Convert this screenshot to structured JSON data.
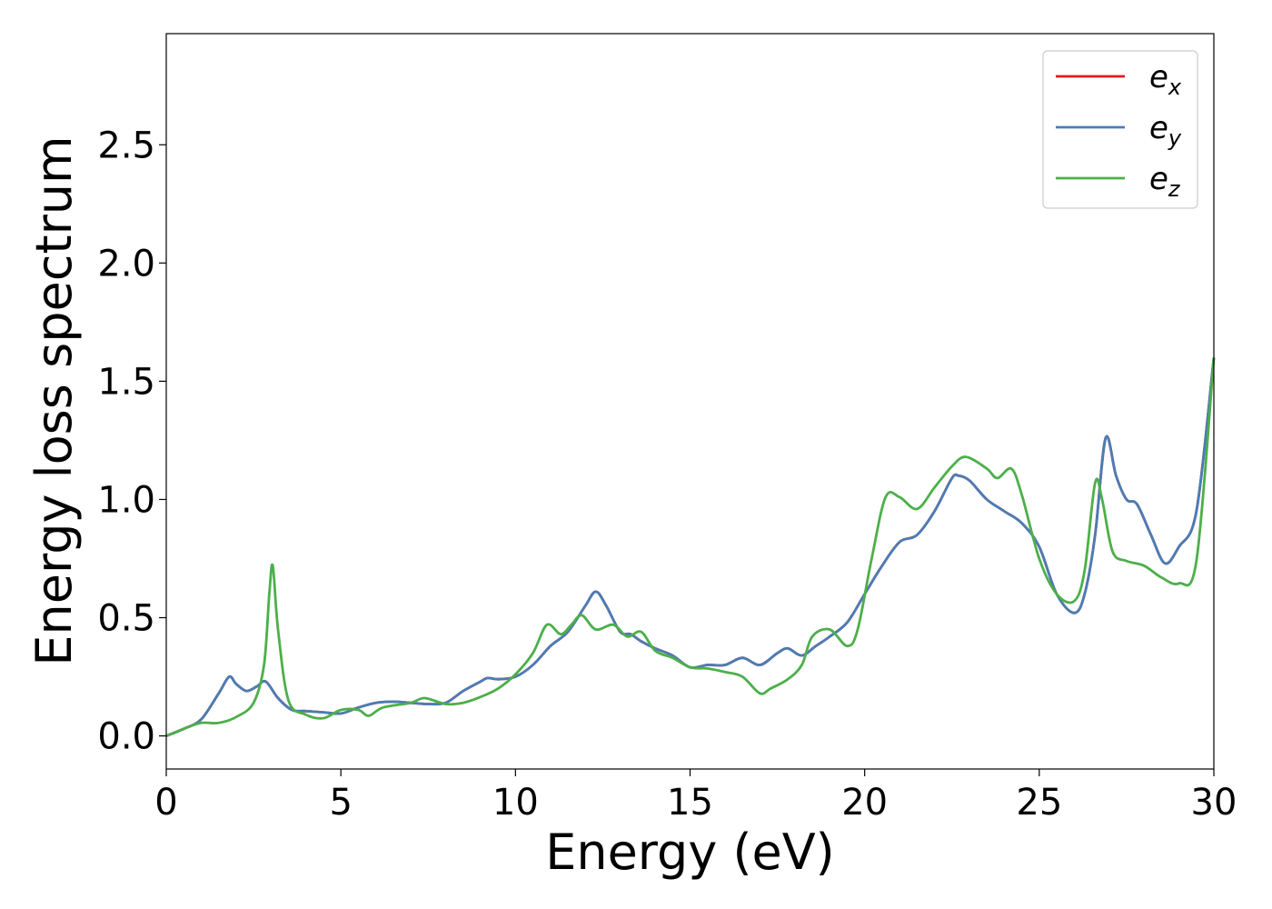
{
  "chart_data": {
    "type": "line",
    "xlabel": "Energy (eV)",
    "ylabel": "Energy loss spectrum",
    "xlim": [
      0,
      30
    ],
    "ylim": [
      -0.14,
      2.97
    ],
    "xticks": [
      0,
      5,
      10,
      15,
      20,
      25,
      30
    ],
    "yticks": [
      0.0,
      0.5,
      1.0,
      1.5,
      2.0,
      2.5
    ],
    "xtick_labels": [
      "0",
      "5",
      "10",
      "15",
      "20",
      "25",
      "30"
    ],
    "ytick_labels": [
      "0.0",
      "0.5",
      "1.0",
      "1.5",
      "2.0",
      "2.5"
    ],
    "grid": false,
    "legend_position": "top-right",
    "series": [
      {
        "name": "e_x",
        "label_base": "e",
        "label_sub": "x",
        "color": "#e41a1c",
        "x": [
          0,
          0.5,
          1.0,
          1.5,
          1.8,
          2.0,
          2.3,
          2.6,
          2.85,
          3.2,
          3.6,
          4.0,
          4.5,
          5.0,
          5.5,
          6.0,
          6.5,
          7.0,
          7.5,
          8.0,
          8.5,
          9.0,
          9.2,
          9.5,
          10.0,
          10.5,
          11.0,
          11.5,
          12.0,
          12.3,
          12.6,
          13.0,
          13.3,
          13.6,
          14.0,
          14.5,
          15.0,
          15.5,
          16.0,
          16.5,
          17.0,
          17.5,
          17.8,
          18.2,
          18.6,
          19.0,
          19.5,
          20.0,
          20.5,
          21.0,
          21.5,
          22.0,
          22.5,
          22.7,
          23.0,
          23.5,
          24.0,
          24.5,
          25.0,
          25.5,
          26.0,
          26.3,
          26.6,
          26.9,
          27.2,
          27.5,
          27.8,
          28.2,
          28.6,
          29.0,
          29.5,
          30.0
        ],
        "y": [
          0,
          0.03,
          0.07,
          0.18,
          0.25,
          0.22,
          0.19,
          0.21,
          0.23,
          0.16,
          0.11,
          0.105,
          0.1,
          0.095,
          0.12,
          0.14,
          0.145,
          0.14,
          0.135,
          0.14,
          0.19,
          0.23,
          0.245,
          0.24,
          0.25,
          0.3,
          0.38,
          0.44,
          0.55,
          0.61,
          0.55,
          0.44,
          0.43,
          0.4,
          0.37,
          0.34,
          0.29,
          0.3,
          0.3,
          0.33,
          0.3,
          0.35,
          0.37,
          0.34,
          0.38,
          0.42,
          0.48,
          0.6,
          0.72,
          0.82,
          0.85,
          0.95,
          1.09,
          1.1,
          1.08,
          1.0,
          0.95,
          0.9,
          0.8,
          0.6,
          0.52,
          0.6,
          0.85,
          1.26,
          1.1,
          1.0,
          0.98,
          0.85,
          0.73,
          0.8,
          0.95,
          1.6
        ]
      },
      {
        "name": "e_y",
        "label_base": "e",
        "label_sub": "y",
        "color": "#4a7db5",
        "x": [
          0,
          0.5,
          1.0,
          1.5,
          1.8,
          2.0,
          2.3,
          2.6,
          2.85,
          3.2,
          3.6,
          4.0,
          4.5,
          5.0,
          5.5,
          6.0,
          6.5,
          7.0,
          7.5,
          8.0,
          8.5,
          9.0,
          9.2,
          9.5,
          10.0,
          10.5,
          11.0,
          11.5,
          12.0,
          12.3,
          12.6,
          13.0,
          13.3,
          13.6,
          14.0,
          14.5,
          15.0,
          15.5,
          16.0,
          16.5,
          17.0,
          17.5,
          17.8,
          18.2,
          18.6,
          19.0,
          19.5,
          20.0,
          20.5,
          21.0,
          21.5,
          22.0,
          22.5,
          22.7,
          23.0,
          23.5,
          24.0,
          24.5,
          25.0,
          25.5,
          26.0,
          26.3,
          26.6,
          26.9,
          27.2,
          27.5,
          27.8,
          28.2,
          28.6,
          29.0,
          29.5,
          30.0
        ],
        "y": [
          0,
          0.03,
          0.07,
          0.18,
          0.25,
          0.22,
          0.19,
          0.21,
          0.23,
          0.16,
          0.11,
          0.105,
          0.1,
          0.095,
          0.12,
          0.14,
          0.145,
          0.14,
          0.135,
          0.14,
          0.19,
          0.23,
          0.245,
          0.24,
          0.25,
          0.3,
          0.38,
          0.44,
          0.55,
          0.61,
          0.55,
          0.44,
          0.43,
          0.4,
          0.37,
          0.34,
          0.29,
          0.3,
          0.3,
          0.33,
          0.3,
          0.35,
          0.37,
          0.34,
          0.38,
          0.42,
          0.48,
          0.6,
          0.72,
          0.82,
          0.85,
          0.95,
          1.09,
          1.1,
          1.08,
          1.0,
          0.95,
          0.9,
          0.8,
          0.6,
          0.52,
          0.6,
          0.85,
          1.26,
          1.1,
          1.0,
          0.98,
          0.85,
          0.73,
          0.8,
          0.95,
          1.6
        ]
      },
      {
        "name": "e_z",
        "label_base": "e",
        "label_sub": "z",
        "color": "#4daf4a",
        "x": [
          0,
          0.5,
          1.0,
          1.5,
          2.0,
          2.5,
          2.8,
          2.95,
          3.05,
          3.2,
          3.5,
          4.0,
          4.5,
          5.0,
          5.5,
          5.8,
          6.2,
          7.0,
          7.4,
          8.0,
          8.5,
          9.0,
          9.5,
          10.0,
          10.5,
          10.9,
          11.3,
          11.6,
          11.9,
          12.3,
          12.8,
          13.2,
          13.6,
          14.0,
          14.5,
          15.0,
          15.5,
          16.0,
          16.5,
          17.0,
          17.3,
          17.8,
          18.2,
          18.5,
          19.0,
          19.5,
          19.8,
          20.2,
          20.6,
          21.0,
          21.5,
          22.0,
          22.5,
          22.9,
          23.5,
          23.8,
          24.2,
          24.5,
          25.0,
          25.5,
          26.0,
          26.3,
          26.6,
          26.8,
          27.1,
          27.5,
          28.0,
          28.5,
          29.0,
          29.5,
          30.0
        ],
        "y": [
          0,
          0.03,
          0.055,
          0.055,
          0.08,
          0.14,
          0.3,
          0.6,
          0.72,
          0.45,
          0.15,
          0.09,
          0.075,
          0.11,
          0.11,
          0.085,
          0.12,
          0.14,
          0.16,
          0.135,
          0.14,
          0.165,
          0.2,
          0.26,
          0.35,
          0.47,
          0.43,
          0.47,
          0.51,
          0.45,
          0.47,
          0.42,
          0.44,
          0.36,
          0.33,
          0.29,
          0.285,
          0.27,
          0.25,
          0.18,
          0.2,
          0.24,
          0.3,
          0.42,
          0.45,
          0.38,
          0.45,
          0.75,
          1.01,
          1.01,
          0.96,
          1.05,
          1.14,
          1.18,
          1.13,
          1.09,
          1.13,
          1.02,
          0.75,
          0.6,
          0.57,
          0.7,
          1.07,
          1.0,
          0.78,
          0.74,
          0.72,
          0.67,
          0.645,
          0.74,
          1.6
        ]
      }
    ]
  }
}
